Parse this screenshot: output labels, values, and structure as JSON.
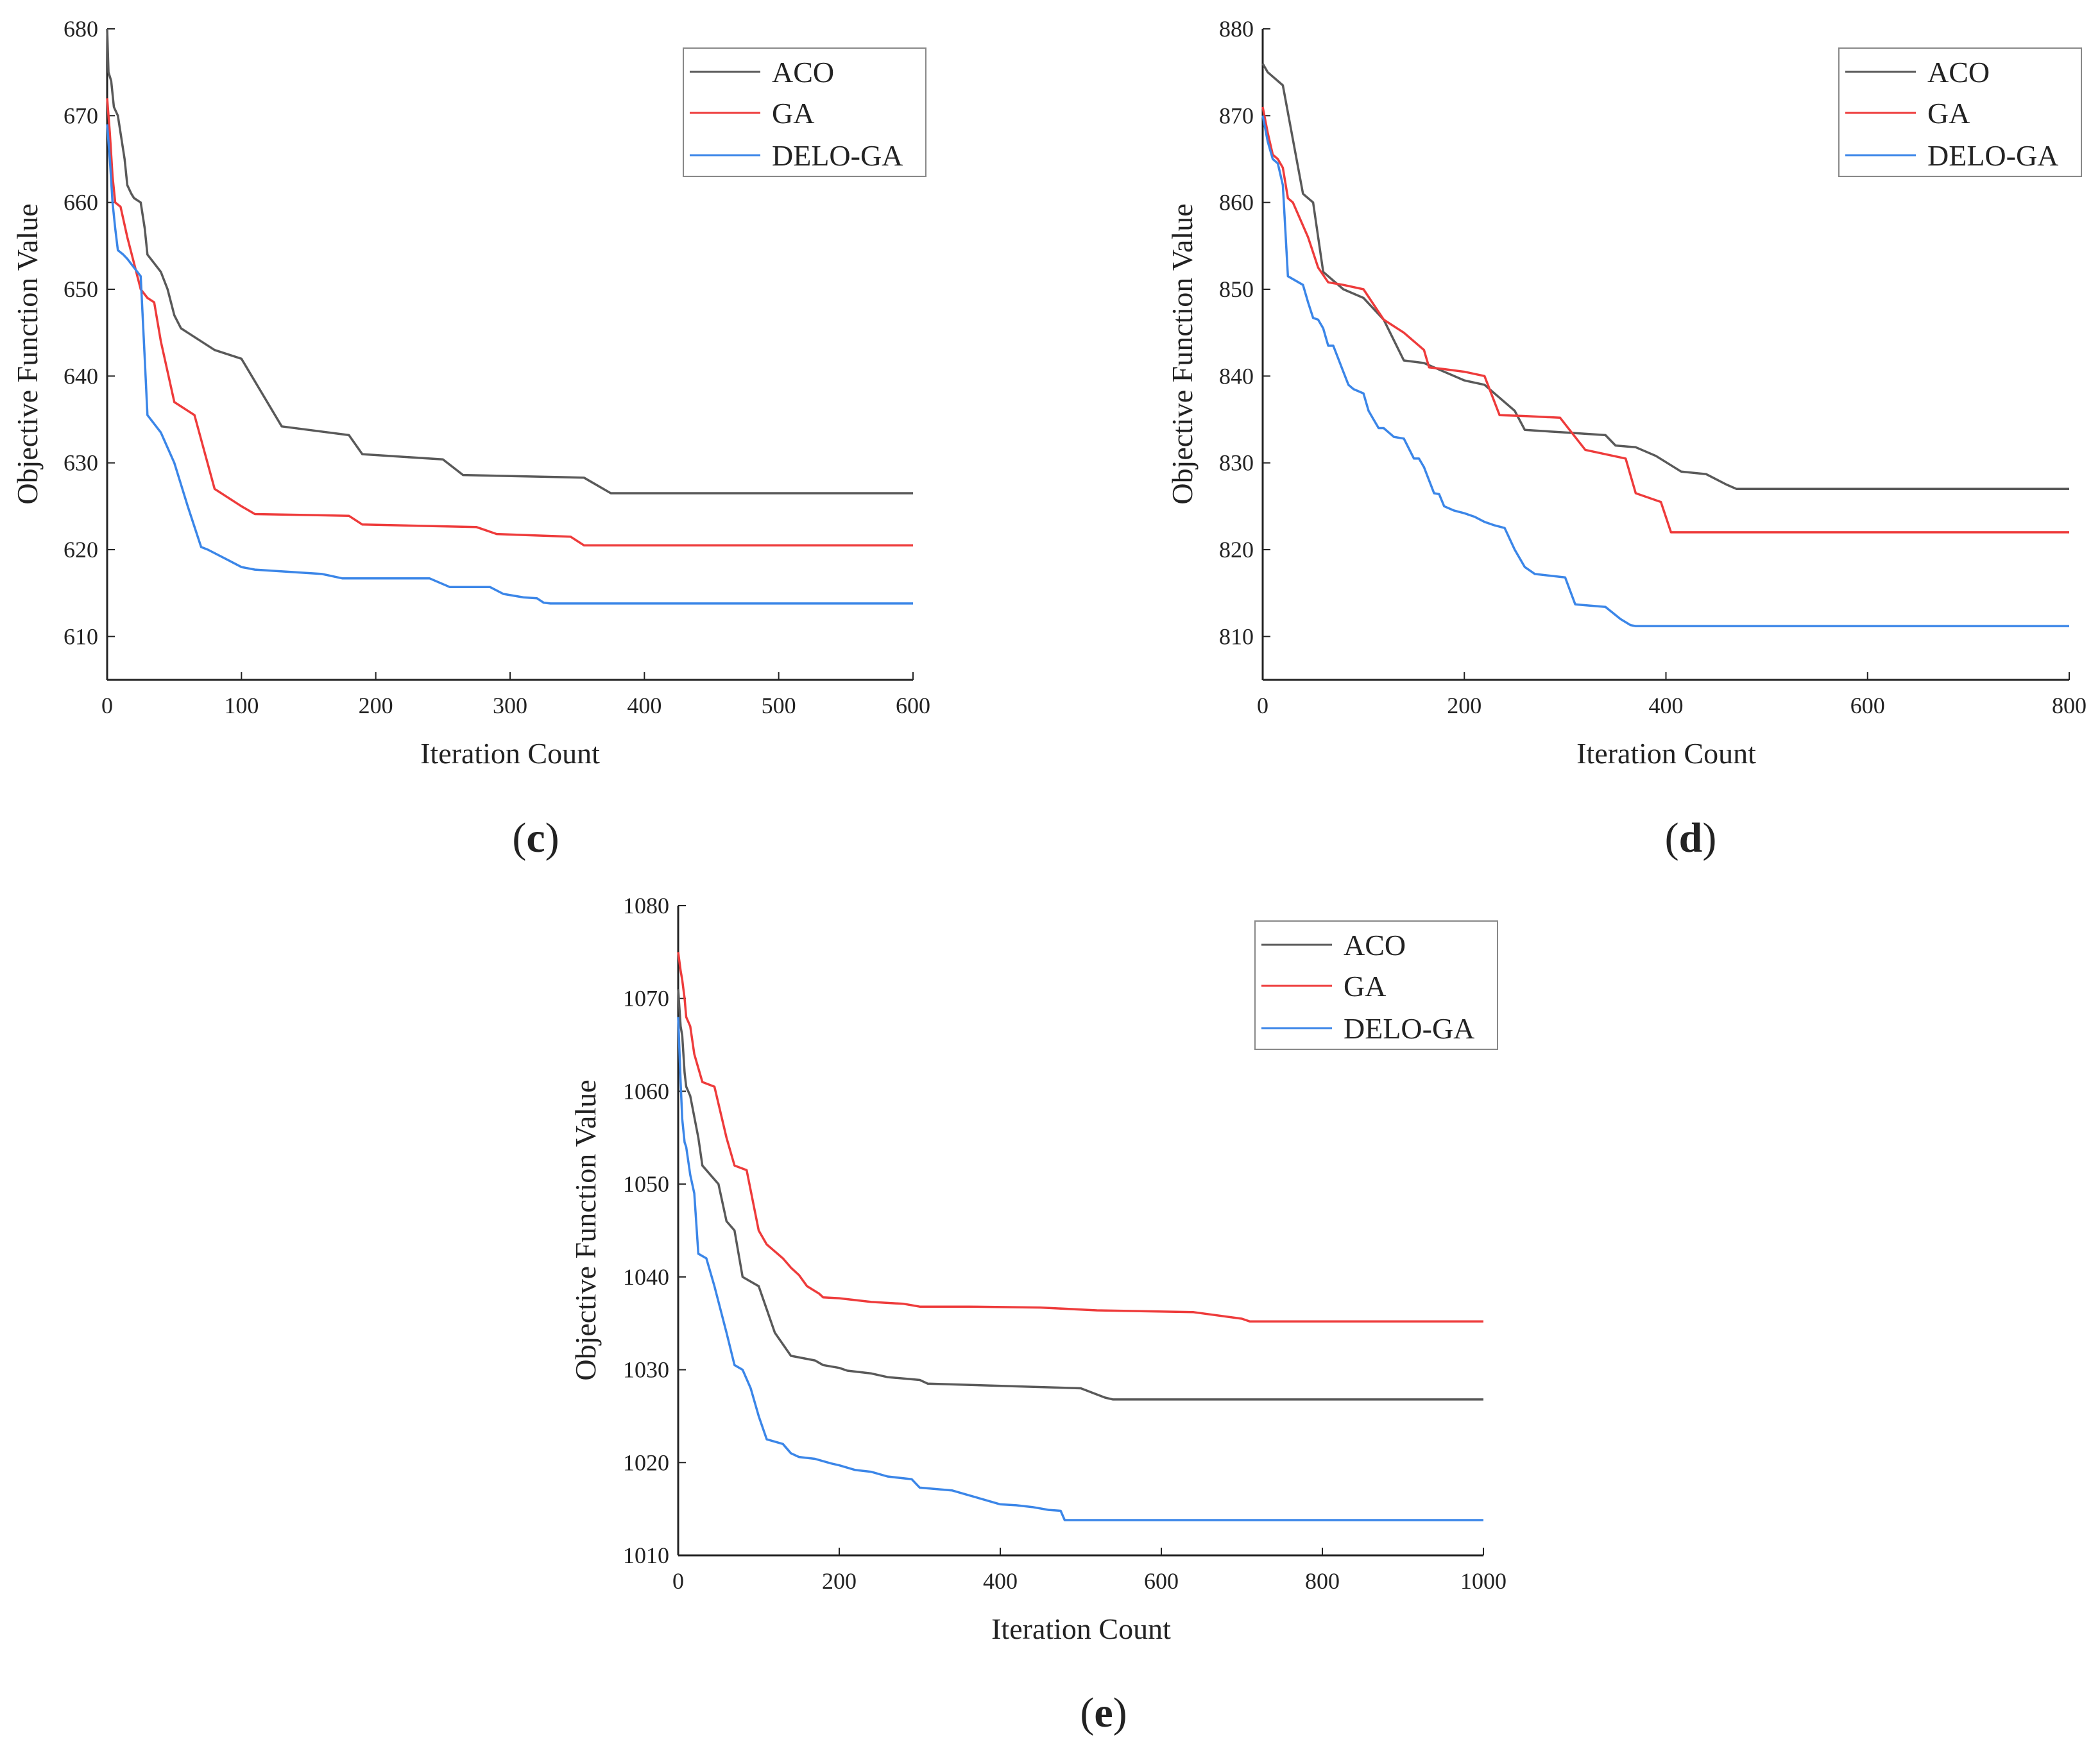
{
  "figure_panels": [
    "c",
    "d",
    "e"
  ],
  "colors": {
    "ACO": "#595959",
    "GA": "#ee3b3b",
    "DELO-GA": "#3b86e8",
    "axis": "#222222"
  },
  "chart_data": [
    {
      "type": "line",
      "panel": "c",
      "xlabel": "Iteration Count",
      "ylabel": "Objective Function Value",
      "xlim": [
        0,
        600
      ],
      "ylim": [
        605,
        680
      ],
      "xticks": [
        0,
        100,
        200,
        300,
        400,
        500,
        600
      ],
      "yticks": [
        610,
        620,
        630,
        640,
        650,
        660,
        670,
        680
      ],
      "legend_position": "top-right",
      "series": [
        {
          "name": "ACO",
          "x": [
            0,
            1,
            3,
            5,
            8,
            10,
            13,
            15,
            18,
            20,
            25,
            28,
            30,
            35,
            40,
            45,
            50,
            55,
            60,
            80,
            100,
            130,
            180,
            190,
            250,
            265,
            355,
            375,
            600
          ],
          "y": [
            680,
            675,
            674,
            671,
            670,
            668,
            665,
            662,
            661,
            660.5,
            660,
            657,
            654,
            653,
            652,
            650,
            647,
            645.5,
            645,
            643,
            642,
            634.2,
            633.2,
            631,
            630.4,
            628.6,
            628.3,
            626.5,
            626.5
          ]
        },
        {
          "name": "GA",
          "x": [
            0,
            2,
            4,
            6,
            10,
            15,
            20,
            25,
            30,
            35,
            40,
            50,
            65,
            80,
            100,
            110,
            180,
            190,
            275,
            290,
            345,
            355,
            600
          ],
          "y": [
            672,
            668,
            663,
            660,
            659.5,
            656,
            653,
            650,
            649,
            648.5,
            644,
            637,
            635.5,
            627,
            625,
            624.1,
            623.9,
            622.9,
            622.6,
            621.8,
            621.5,
            620.5,
            620.5
          ]
        },
        {
          "name": "DELO-GA",
          "x": [
            0,
            2,
            4,
            6,
            8,
            12,
            15,
            20,
            25,
            28,
            30,
            35,
            40,
            50,
            60,
            70,
            75,
            90,
            100,
            110,
            160,
            175,
            240,
            255,
            285,
            295,
            310,
            320,
            325,
            330,
            600
          ],
          "y": [
            669,
            665,
            660,
            657,
            654.5,
            654,
            653.5,
            652.5,
            651.5,
            642,
            635.5,
            634.5,
            633.5,
            630,
            625,
            620.3,
            620,
            618.8,
            618,
            617.7,
            617.2,
            616.7,
            616.7,
            615.7,
            615.7,
            614.9,
            614.5,
            614.4,
            613.9,
            613.8,
            613.8
          ]
        }
      ]
    },
    {
      "type": "line",
      "panel": "d",
      "xlabel": "Iteration Count",
      "ylabel": "Objective Function Value",
      "xlim": [
        0,
        800
      ],
      "ylim": [
        805,
        880
      ],
      "xticks": [
        0,
        200,
        400,
        600,
        800
      ],
      "yticks": [
        810,
        820,
        830,
        840,
        850,
        860,
        870,
        880
      ],
      "legend_position": "top-right",
      "series": [
        {
          "name": "ACO",
          "x": [
            0,
            5,
            20,
            40,
            50,
            60,
            80,
            100,
            120,
            140,
            160,
            170,
            200,
            220,
            250,
            260,
            300,
            340,
            350,
            370,
            390,
            415,
            440,
            460,
            470,
            800
          ],
          "y": [
            876,
            875,
            873.5,
            861,
            860,
            852,
            850,
            849,
            846.5,
            841.8,
            841.5,
            841,
            839.5,
            839,
            836,
            833.8,
            833.5,
            833.2,
            832,
            831.8,
            830.8,
            829,
            828.7,
            827.5,
            827,
            827
          ]
        },
        {
          "name": "GA",
          "x": [
            0,
            5,
            10,
            15,
            20,
            25,
            30,
            45,
            55,
            65,
            80,
            100,
            120,
            140,
            160,
            165,
            180,
            200,
            220,
            235,
            260,
            295,
            320,
            360,
            370,
            395,
            405,
            410,
            800
          ],
          "y": [
            871,
            868,
            865.5,
            865,
            864,
            860.5,
            860,
            856,
            852.5,
            850.8,
            850.5,
            850,
            846.5,
            845,
            843,
            841,
            840.8,
            840.5,
            840,
            835.5,
            835.4,
            835.2,
            831.5,
            830.5,
            826.5,
            825.5,
            822,
            822,
            822
          ]
        },
        {
          "name": "DELO-GA",
          "x": [
            0,
            5,
            10,
            15,
            20,
            25,
            40,
            45,
            50,
            55,
            60,
            65,
            70,
            80,
            85,
            90,
            100,
            105,
            110,
            115,
            120,
            130,
            140,
            150,
            155,
            160,
            170,
            175,
            180,
            190,
            200,
            210,
            220,
            230,
            240,
            250,
            260,
            270,
            300,
            310,
            320,
            340,
            355,
            365,
            370,
            800
          ],
          "y": [
            870,
            867,
            865,
            864.5,
            862,
            851.5,
            850.5,
            848.5,
            846.7,
            846.5,
            845.5,
            843.5,
            843.5,
            840.5,
            839,
            838.5,
            838,
            836,
            835,
            834,
            834,
            833,
            832.8,
            830.5,
            830.5,
            829.5,
            826.5,
            826.4,
            825,
            824.5,
            824.2,
            823.8,
            823.2,
            822.8,
            822.5,
            820,
            818,
            817.2,
            816.8,
            813.7,
            813.6,
            813.4,
            812,
            811.3,
            811.2,
            811.2
          ]
        }
      ]
    },
    {
      "type": "line",
      "panel": "e",
      "xlabel": "Iteration Count",
      "ylabel": "Objective Function Value",
      "xlim": [
        0,
        1000
      ],
      "ylim": [
        1010,
        1080
      ],
      "xticks": [
        0,
        200,
        400,
        600,
        800,
        1000
      ],
      "yticks": [
        1010,
        1020,
        1030,
        1040,
        1050,
        1060,
        1070,
        1080
      ],
      "legend_position": "top-right",
      "series": [
        {
          "name": "ACO",
          "x": [
            0,
            3,
            5,
            8,
            10,
            15,
            25,
            30,
            40,
            50,
            60,
            70,
            80,
            100,
            120,
            140,
            170,
            180,
            200,
            210,
            240,
            260,
            300,
            310,
            500,
            530,
            540,
            1000
          ],
          "y": [
            1071,
            1067,
            1066,
            1062,
            1060.5,
            1059.5,
            1055,
            1052,
            1051,
            1050,
            1046,
            1045,
            1040,
            1039,
            1034,
            1031.5,
            1031,
            1030.5,
            1030.2,
            1029.9,
            1029.6,
            1029.2,
            1028.9,
            1028.5,
            1028,
            1027,
            1026.8,
            1026.8
          ]
        },
        {
          "name": "GA",
          "x": [
            0,
            3,
            5,
            8,
            10,
            15,
            20,
            30,
            45,
            60,
            70,
            85,
            100,
            110,
            130,
            140,
            150,
            160,
            175,
            180,
            200,
            240,
            280,
            300,
            360,
            450,
            520,
            640,
            700,
            710,
            1000
          ],
          "y": [
            1075,
            1073,
            1072,
            1070,
            1068,
            1067,
            1064,
            1061,
            1060.5,
            1055,
            1052,
            1051.5,
            1045,
            1043.5,
            1042,
            1041,
            1040.2,
            1039,
            1038.2,
            1037.8,
            1037.7,
            1037.3,
            1037.1,
            1036.8,
            1036.8,
            1036.7,
            1036.4,
            1036.2,
            1035.5,
            1035.2,
            1035.2
          ]
        },
        {
          "name": "DELO-GA",
          "x": [
            0,
            3,
            5,
            8,
            10,
            15,
            20,
            25,
            35,
            45,
            60,
            70,
            80,
            90,
            100,
            110,
            130,
            140,
            150,
            170,
            190,
            200,
            220,
            240,
            260,
            290,
            300,
            340,
            360,
            400,
            420,
            440,
            460,
            475,
            480,
            1000
          ],
          "y": [
            1068,
            1061,
            1057,
            1054.5,
            1054,
            1051,
            1049,
            1042.5,
            1042,
            1039,
            1034,
            1030.5,
            1030,
            1028,
            1025,
            1022.5,
            1022,
            1021,
            1020.6,
            1020.4,
            1019.9,
            1019.7,
            1019.2,
            1019,
            1018.5,
            1018.2,
            1017.3,
            1017,
            1016.5,
            1015.5,
            1015.4,
            1015.2,
            1014.9,
            1014.8,
            1013.8,
            1013.8
          ]
        }
      ]
    }
  ]
}
